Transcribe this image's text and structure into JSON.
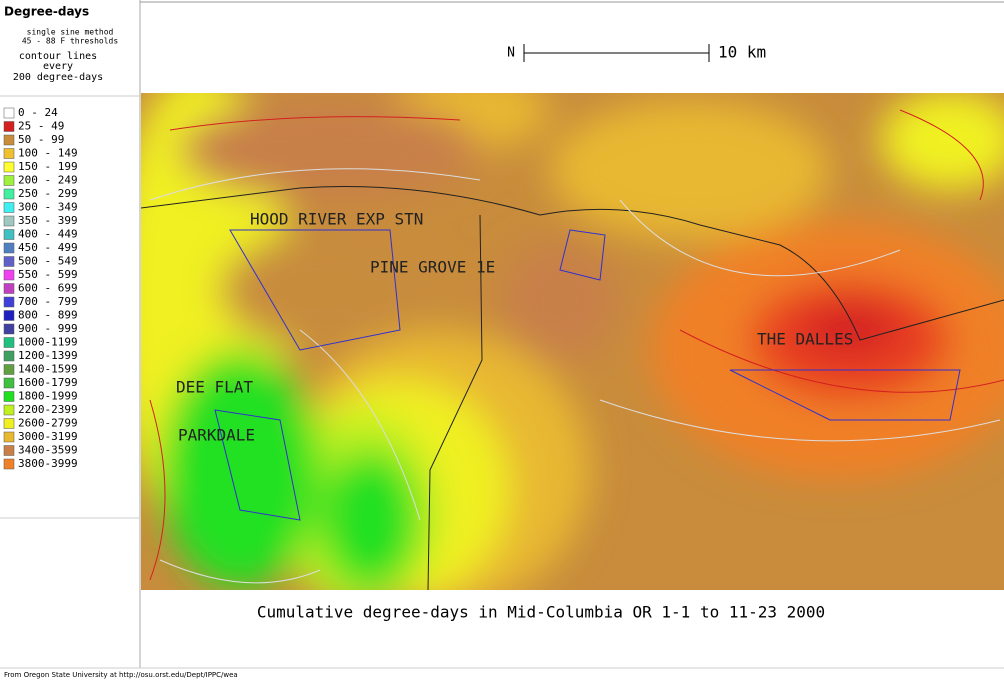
{
  "legend": {
    "title": "Degree-days",
    "method": [
      "single sine method",
      "45 - 88 F thresholds"
    ],
    "contour": [
      "contour lines",
      "every",
      "200 degree-days"
    ],
    "entries": [
      {
        "label": "0 - 24",
        "color": "#ffffff"
      },
      {
        "label": "25 - 49",
        "color": "#d42020"
      },
      {
        "label": "50 - 99",
        "color": "#c88c3c"
      },
      {
        "label": "100 - 149",
        "color": "#f0c030"
      },
      {
        "label": "150 - 199",
        "color": "#ffff30"
      },
      {
        "label": "200 - 249",
        "color": "#a0f040"
      },
      {
        "label": "250 - 299",
        "color": "#40f0a0"
      },
      {
        "label": "300 - 349",
        "color": "#40f0f0"
      },
      {
        "label": "350 - 399",
        "color": "#a0c8c0"
      },
      {
        "label": "400 - 449",
        "color": "#40c0c0"
      },
      {
        "label": "450 - 499",
        "color": "#5080c0"
      },
      {
        "label": "500 - 549",
        "color": "#6060c8"
      },
      {
        "label": "550 - 599",
        "color": "#f040f0"
      },
      {
        "label": "600 - 699",
        "color": "#c040c0"
      },
      {
        "label": "700 - 799",
        "color": "#4040d8"
      },
      {
        "label": "800 - 899",
        "color": "#2020c0"
      },
      {
        "label": "900 - 999",
        "color": "#4040a0"
      },
      {
        "label": "1000-1199",
        "color": "#20c080"
      },
      {
        "label": "1200-1399",
        "color": "#40a060"
      },
      {
        "label": "1400-1599",
        "color": "#60a040"
      },
      {
        "label": "1600-1799",
        "color": "#40c040"
      },
      {
        "label": "1800-1999",
        "color": "#20e020"
      },
      {
        "label": "2200-2399",
        "color": "#c0f020"
      },
      {
        "label": "2600-2799",
        "color": "#f0f020"
      },
      {
        "label": "3000-3199",
        "color": "#e8b830"
      },
      {
        "label": "3400-3599",
        "color": "#c88048"
      },
      {
        "label": "3800-3999",
        "color": "#f08028"
      }
    ]
  },
  "scale": {
    "north": "N",
    "label": "10 km"
  },
  "places": [
    "HOOD RIVER EXP STN",
    "PINE GROVE 1E",
    "THE DALLES",
    "DEE FLAT",
    "PARKDALE"
  ],
  "caption": "Cumulative degree-days in Mid-Columbia OR 1-1 to 11-23 2000",
  "footer": "From Oregon State University at http://osu.orst.edu/Dept/IPPC/wea"
}
